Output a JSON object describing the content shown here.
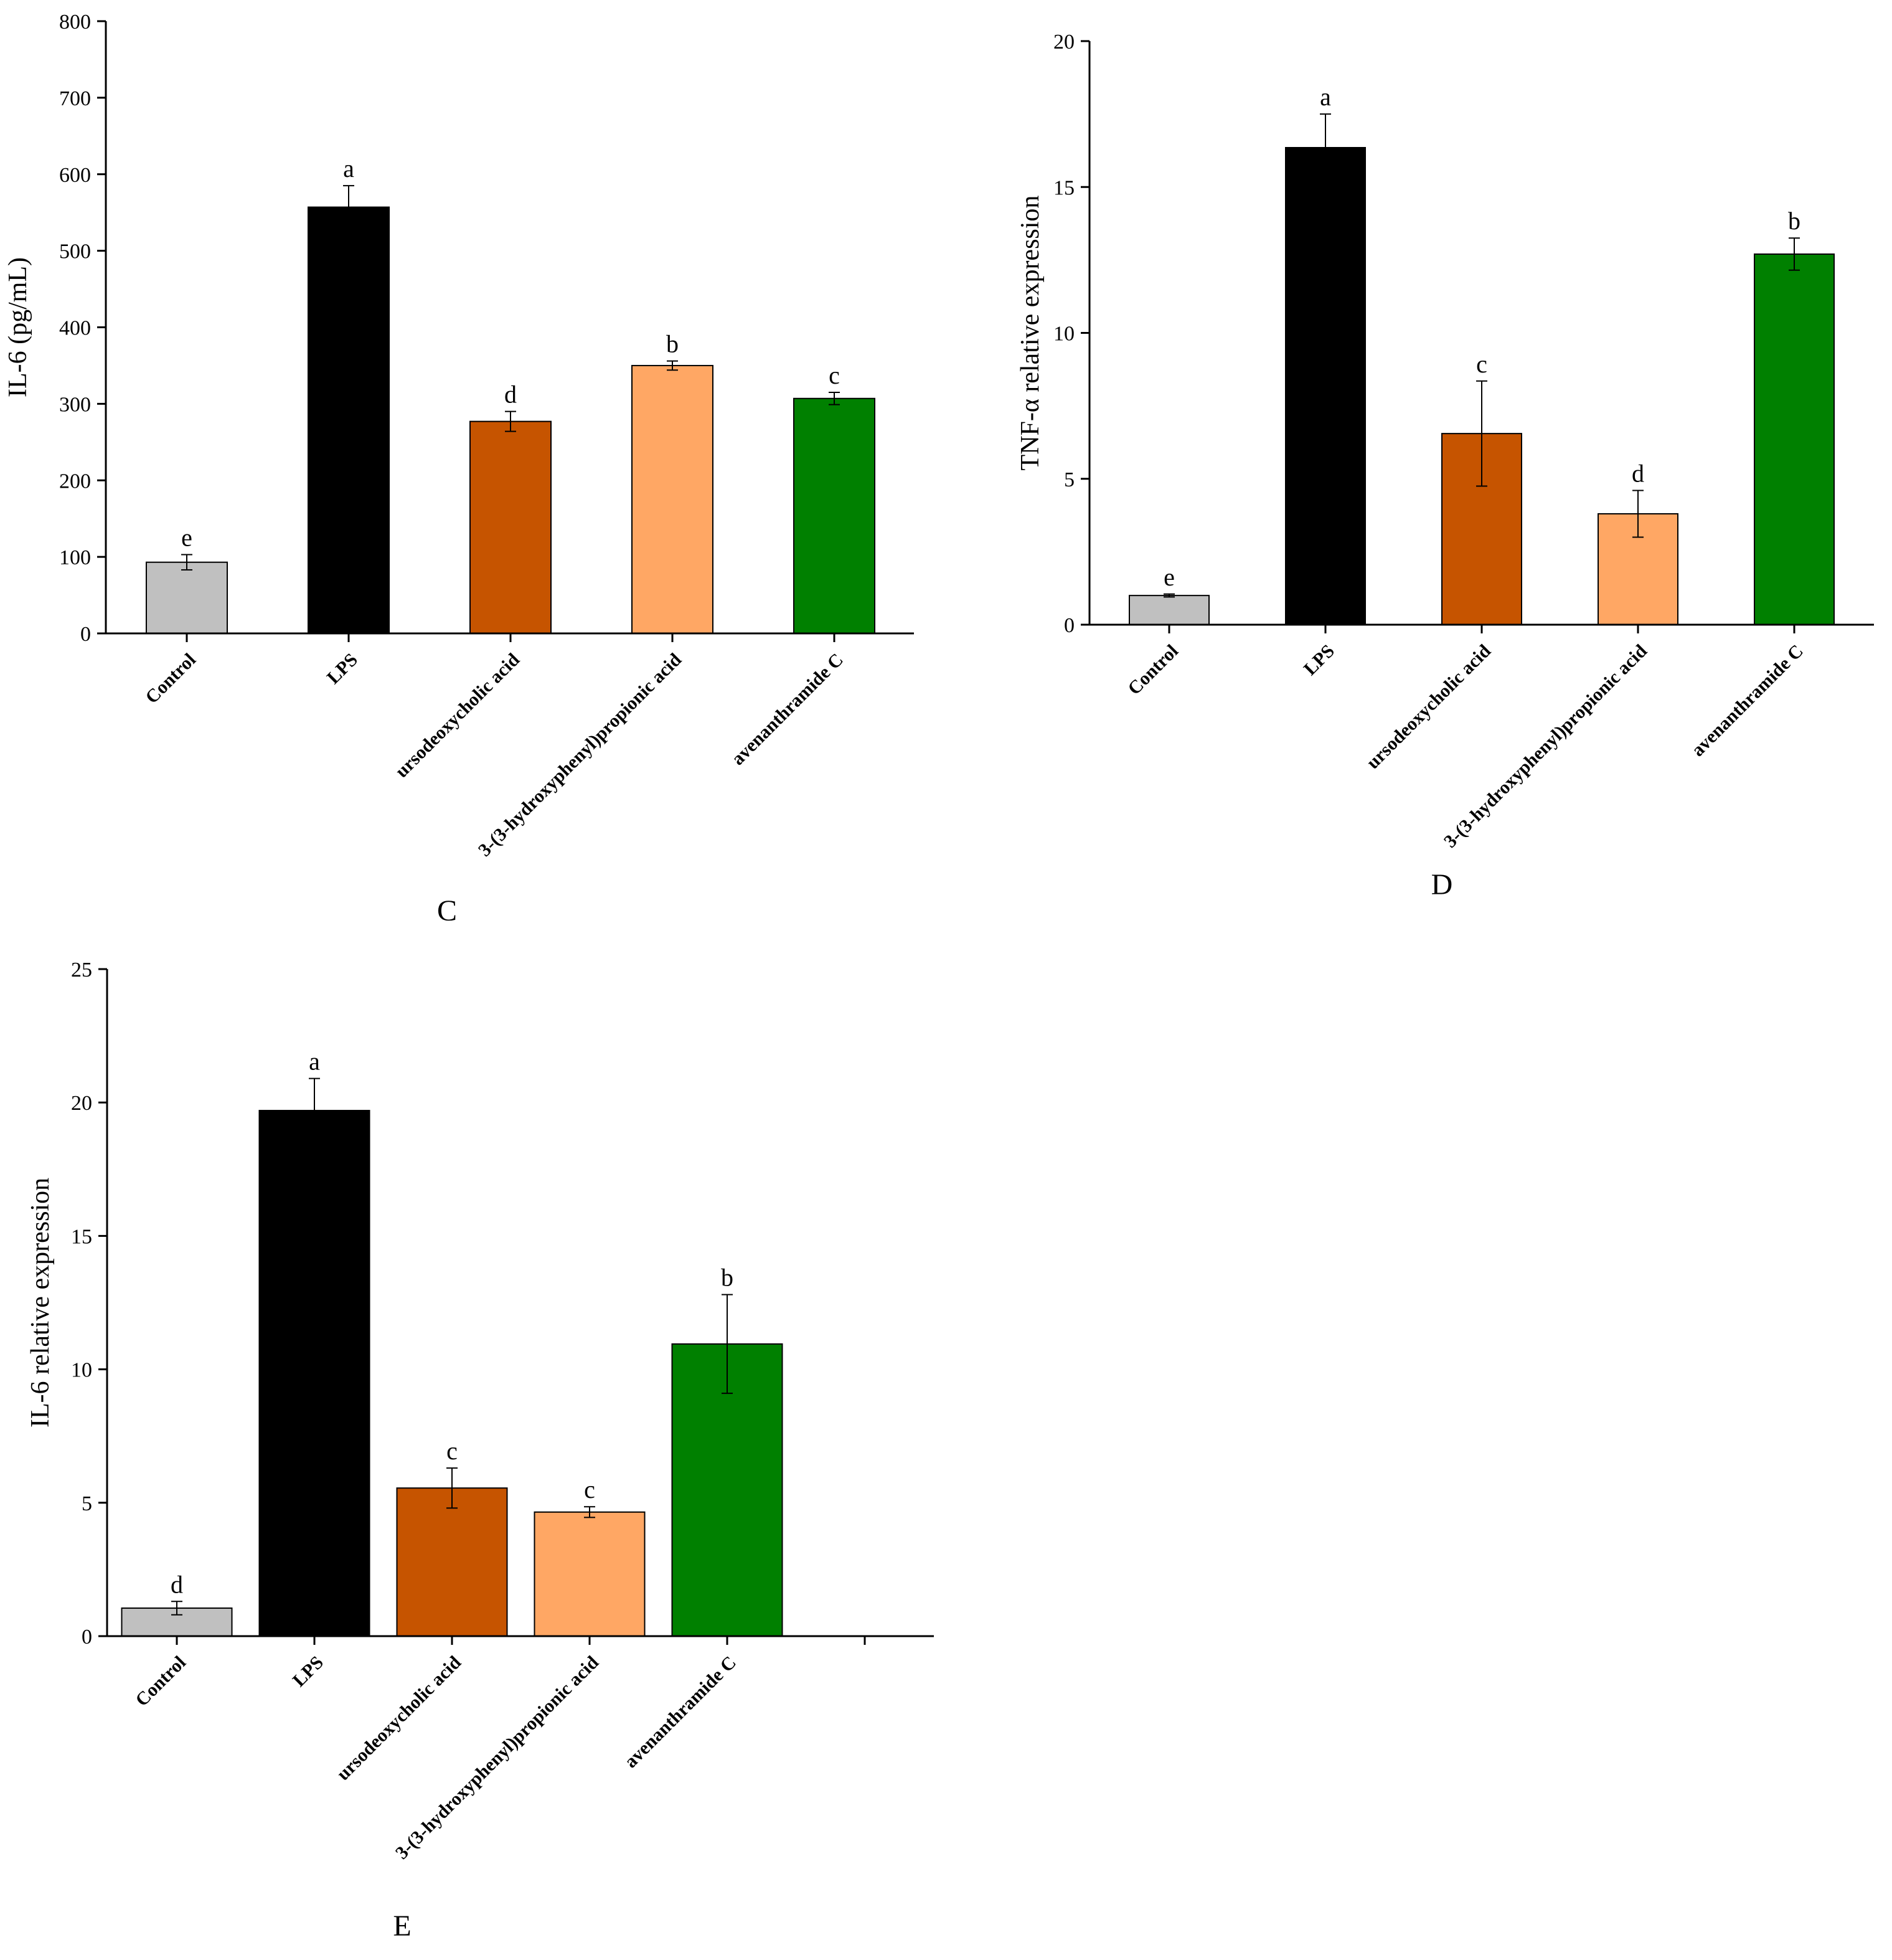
{
  "chart_data": [
    {
      "type": "bar",
      "panel_label": "C",
      "ylabel": "IL-6 (pg/mL)",
      "xlabel": "",
      "ylim": [
        0,
        800
      ],
      "yticks": [
        0,
        100,
        200,
        300,
        400,
        500,
        600,
        700,
        800
      ],
      "categories": [
        "Control",
        "LPS",
        "ursodeoxycholic acid",
        "3-(3-hydroxyphenyl)propionic acid",
        "avenanthramide C"
      ],
      "values": [
        93,
        557,
        277,
        350,
        307
      ],
      "errors": [
        10,
        28,
        13,
        6,
        8
      ],
      "significance": [
        "e",
        "a",
        "d",
        "b",
        "c"
      ],
      "colors": [
        "#c0c0c0",
        "#000000",
        "#c65400",
        "#ffa764",
        "#008000"
      ],
      "grid": false
    },
    {
      "type": "bar",
      "panel_label": "D",
      "ylabel": "TNF-α relative expression",
      "xlabel": "",
      "ylim": [
        0,
        20
      ],
      "yticks": [
        0,
        5,
        10,
        15,
        20
      ],
      "categories": [
        "Control",
        "LPS",
        "ursodeoxycholic acid",
        "3-(3-hydroxyphenyl)propionic acid",
        "avenanthramide C"
      ],
      "values": [
        1.0,
        16.35,
        6.55,
        3.8,
        12.7
      ],
      "errors": [
        0.05,
        1.15,
        1.8,
        0.8,
        0.55
      ],
      "significance": [
        "e",
        "a",
        "c",
        "d",
        "b"
      ],
      "colors": [
        "#c0c0c0",
        "#000000",
        "#c65400",
        "#ffa764",
        "#008000"
      ],
      "grid": false
    },
    {
      "type": "bar",
      "panel_label": "E",
      "ylabel": "IL-6 relative expression",
      "xlabel": "",
      "ylim": [
        0,
        25
      ],
      "yticks": [
        0,
        5,
        10,
        15,
        20,
        25
      ],
      "categories": [
        "Control",
        "LPS",
        "ursodeoxycholic acid",
        "3-(3-hydroxyphenyl)propionic acid",
        "avenanthramide C"
      ],
      "values": [
        1.05,
        19.7,
        5.55,
        4.65,
        10.95
      ],
      "errors": [
        0.25,
        1.2,
        0.75,
        0.2,
        1.85
      ],
      "significance": [
        "d",
        "a",
        "c",
        "c",
        "b"
      ],
      "colors": [
        "#c0c0c0",
        "#000000",
        "#c65400",
        "#ffa764",
        "#008000"
      ],
      "grid": false
    }
  ]
}
